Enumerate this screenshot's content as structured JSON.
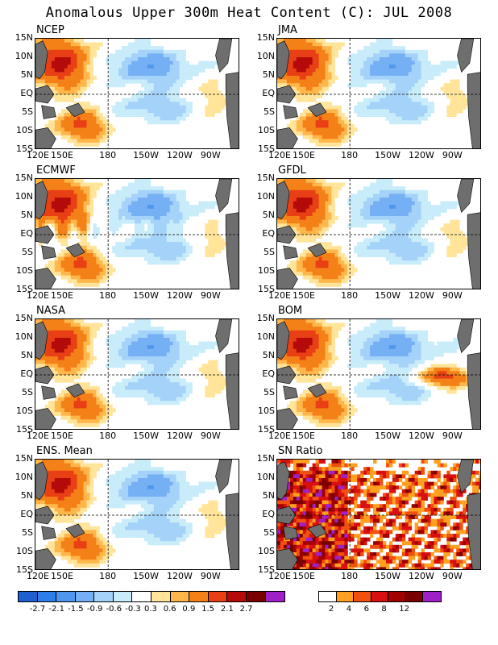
{
  "title": "Anomalous Upper 300m Heat Content (C): JUL 2008",
  "panels": [
    {
      "id": "ncep",
      "label": "NCEP"
    },
    {
      "id": "jma",
      "label": "JMA"
    },
    {
      "id": "ecmwf",
      "label": "ECMWF"
    },
    {
      "id": "gfdl",
      "label": "GFDL"
    },
    {
      "id": "nasa",
      "label": "NASA"
    },
    {
      "id": "bom",
      "label": "BOM"
    },
    {
      "id": "ens",
      "label": "ENS. Mean"
    },
    {
      "id": "sn",
      "label": "SN Ratio"
    }
  ],
  "lat_labels": [
    "15N",
    "10N",
    "5N",
    "EQ",
    "5S",
    "10S",
    "15S"
  ],
  "lon_labels": [
    "120E",
    "150E",
    "180",
    "150W",
    "120W",
    "90W"
  ],
  "colors": {
    "land": "#6e6e6e",
    "anom": [
      "#1e60d0",
      "#2e7ee8",
      "#4e96ee",
      "#76b0f4",
      "#a4d2f8",
      "#c8ecfa",
      "#ffffff",
      "#ffe49a",
      "#ffb64a",
      "#f48018",
      "#e84014",
      "#b40a0a",
      "#7a0000",
      "#a020c8"
    ],
    "sn": [
      "#ffffff",
      "#ffa020",
      "#f05010",
      "#d81010",
      "#a00000",
      "#7a0000",
      "#a020c8"
    ]
  },
  "colorbar_anom_labels": [
    "-2.7",
    "-2.1",
    "-1.5",
    "-0.9",
    "-0.6",
    "-0.3",
    "0.3",
    "0.6",
    "0.9",
    "1.5",
    "2.1",
    "2.7"
  ],
  "colorbar_sn_labels": [
    "2",
    "4",
    "6",
    "8",
    "12"
  ]
}
